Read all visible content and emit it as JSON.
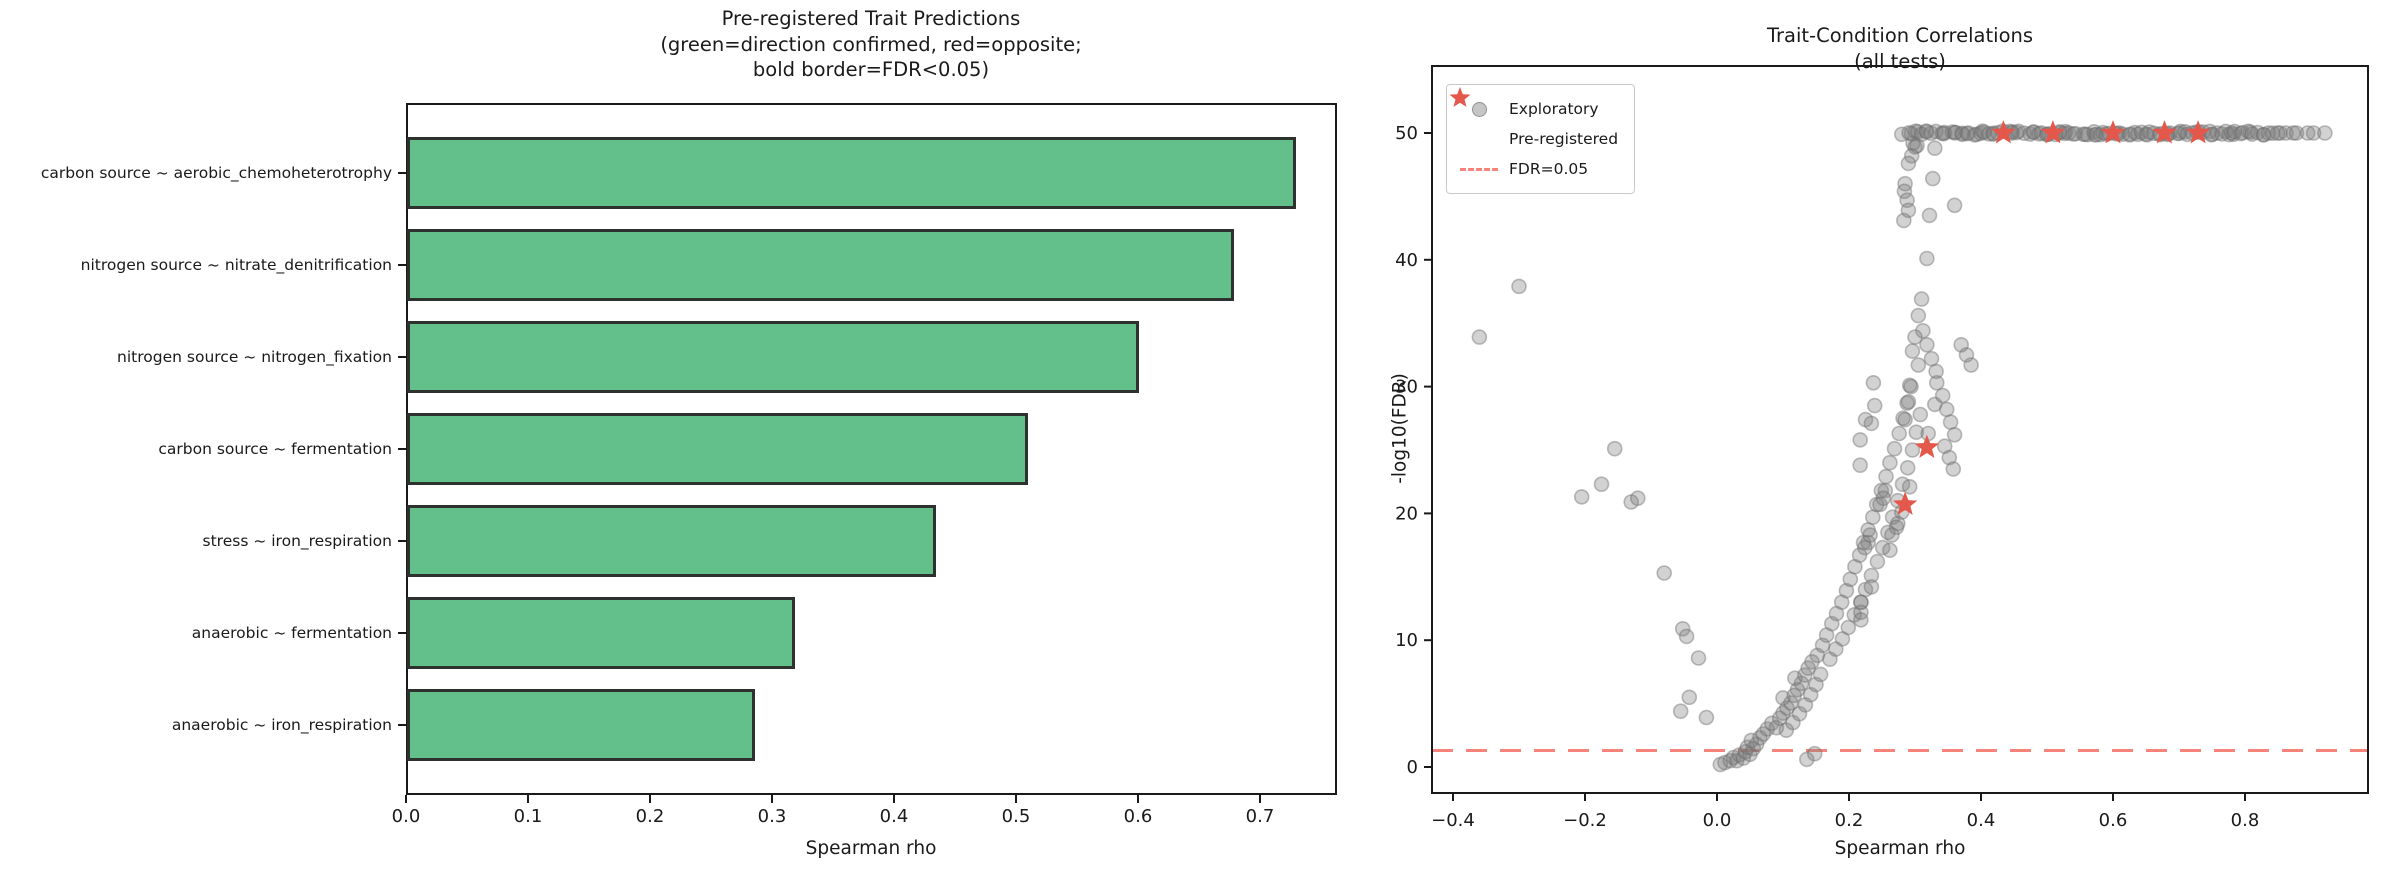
{
  "figure": {
    "background": "#ffffff",
    "text_color": "#1a1a1a"
  },
  "chart_data": [
    {
      "type": "bar",
      "orientation": "horizontal",
      "title_lines": [
        "Pre-registered Trait Predictions",
        "(green=direction confirmed, red=opposite;",
        "bold border=FDR<0.05)"
      ],
      "xlabel": "Spearman rho",
      "categories": [
        "carbon source ~ aerobic_chemoheterotrophy",
        "nitrogen source ~ nitrate_denitrification",
        "nitrogen source ~ nitrogen_fixation",
        "carbon source ~ fermentation",
        "stress ~ iron_respiration",
        "anaerobic ~ fermentation",
        "anaerobic ~ iron_respiration"
      ],
      "values": [
        0.729,
        0.678,
        0.6,
        0.509,
        0.434,
        0.318,
        0.285
      ],
      "xtick_labels": [
        "0.0",
        "0.1",
        "0.2",
        "0.3",
        "0.4",
        "0.5",
        "0.6",
        "0.7"
      ],
      "xtick_values": [
        0,
        0.1,
        0.2,
        0.3,
        0.4,
        0.5,
        0.6,
        0.7
      ],
      "xlim": [
        0,
        0.766
      ],
      "bar_color": "#63c08a",
      "bar_edge_color": "#2d322e",
      "note": "all 7 bars green with bold dark borders (direction confirmed, FDR<0.05)"
    },
    {
      "type": "scatter",
      "title_lines": [
        "Trait-Condition Correlations",
        "(all tests)"
      ],
      "xlabel": "Spearman rho",
      "ylabel": "-log10(FDR)",
      "xtick_labels": [
        "−0.4",
        "−0.2",
        "0.0",
        "0.2",
        "0.4",
        "0.6",
        "0.8"
      ],
      "xtick_values": [
        -0.4,
        -0.2,
        0.0,
        0.2,
        0.4,
        0.6,
        0.8
      ],
      "ytick_labels": [
        "0",
        "10",
        "20",
        "30",
        "40",
        "50"
      ],
      "ytick_values": [
        0,
        10,
        20,
        30,
        40,
        50
      ],
      "xlim": [
        -0.432,
        0.986
      ],
      "ylim": [
        -2.1,
        55.3
      ],
      "fdr_line_y": 1.3,
      "colors": {
        "exploratory_fill": "#7d7d7d",
        "exploratory_edge": "#6e6e6e",
        "star_color": "#e4584b",
        "fdr_line_color": "#f8837a"
      },
      "legend": {
        "items": [
          {
            "marker": "circle",
            "label": "Exploratory"
          },
          {
            "marker": "star",
            "label": "Pre-registered"
          },
          {
            "marker": "dashed-line",
            "label": "FDR=0.05"
          }
        ]
      },
      "series": {
        "band_at_50": {
          "y": 50,
          "x_min": 0.285,
          "x_max": 0.845,
          "n": 110,
          "note": "dense overlapping exploratory points capped at -log10(FDR)=50"
        },
        "band_tail": [
          [
            0.853,
            50
          ],
          [
            0.862,
            50
          ],
          [
            0.873,
            50
          ],
          [
            0.878,
            50
          ],
          [
            0.895,
            50
          ],
          [
            0.904,
            50
          ],
          [
            0.921,
            50
          ]
        ],
        "preregistered_stars": [
          [
            0.434,
            50
          ],
          [
            0.509,
            50
          ],
          [
            0.6,
            50
          ],
          [
            0.678,
            50
          ],
          [
            0.729,
            50
          ],
          [
            0.318,
            25.2
          ],
          [
            0.285,
            20.7
          ]
        ],
        "exploratory_points": [
          [
            -0.3,
            37.9
          ],
          [
            -0.36,
            33.9
          ],
          [
            -0.155,
            25.1
          ],
          [
            -0.175,
            22.3
          ],
          [
            -0.205,
            21.3
          ],
          [
            -0.13,
            20.9
          ],
          [
            -0.12,
            21.2
          ],
          [
            -0.08,
            15.3
          ],
          [
            -0.052,
            10.9
          ],
          [
            -0.046,
            10.3
          ],
          [
            -0.028,
            8.6
          ],
          [
            -0.042,
            5.5
          ],
          [
            -0.016,
            3.9
          ],
          [
            -0.055,
            4.4
          ],
          [
            0.005,
            0.2
          ],
          [
            0.012,
            0.35
          ],
          [
            0.02,
            0.5
          ],
          [
            0.025,
            0.75
          ],
          [
            0.03,
            0.5
          ],
          [
            0.034,
            0.95
          ],
          [
            0.04,
            0.7
          ],
          [
            0.043,
            1.2
          ],
          [
            0.05,
            1.0
          ],
          [
            0.046,
            1.55
          ],
          [
            0.055,
            1.45
          ],
          [
            0.06,
            1.8
          ],
          [
            0.052,
            2.1
          ],
          [
            0.065,
            2.3
          ],
          [
            0.136,
            0.6
          ],
          [
            0.148,
            1.05
          ],
          [
            0.07,
            2.6
          ],
          [
            0.076,
            3.0
          ],
          [
            0.083,
            3.45
          ],
          [
            0.09,
            3.1
          ],
          [
            0.095,
            3.85
          ],
          [
            0.1,
            4.25
          ],
          [
            0.106,
            4.65
          ],
          [
            0.112,
            5.05
          ],
          [
            0.1,
            5.45
          ],
          [
            0.117,
            5.65
          ],
          [
            0.122,
            6.1
          ],
          [
            0.128,
            6.6
          ],
          [
            0.118,
            7.0
          ],
          [
            0.133,
            7.25
          ],
          [
            0.138,
            7.8
          ],
          [
            0.144,
            8.3
          ],
          [
            0.105,
            2.9
          ],
          [
            0.115,
            3.5
          ],
          [
            0.125,
            4.2
          ],
          [
            0.134,
            4.9
          ],
          [
            0.142,
            5.7
          ],
          [
            0.15,
            6.5
          ],
          [
            0.157,
            7.3
          ],
          [
            0.152,
            8.8
          ],
          [
            0.16,
            9.6
          ],
          [
            0.166,
            10.4
          ],
          [
            0.174,
            11.3
          ],
          [
            0.181,
            12.1
          ],
          [
            0.189,
            13.0
          ],
          [
            0.196,
            13.9
          ],
          [
            0.202,
            14.8
          ],
          [
            0.209,
            15.8
          ],
          [
            0.216,
            16.7
          ],
          [
            0.222,
            17.7
          ],
          [
            0.229,
            18.7
          ],
          [
            0.236,
            19.7
          ],
          [
            0.242,
            20.7
          ],
          [
            0.249,
            21.8
          ],
          [
            0.256,
            22.9
          ],
          [
            0.262,
            24.0
          ],
          [
            0.269,
            25.1
          ],
          [
            0.276,
            26.3
          ],
          [
            0.282,
            27.5
          ],
          [
            0.288,
            28.7
          ],
          [
            0.294,
            30.0
          ],
          [
            0.171,
            8.5
          ],
          [
            0.18,
            9.3
          ],
          [
            0.19,
            10.1
          ],
          [
            0.199,
            11.0
          ],
          [
            0.208,
            12.0
          ],
          [
            0.218,
            13.0
          ],
          [
            0.225,
            14.0
          ],
          [
            0.234,
            15.1
          ],
          [
            0.243,
            16.2
          ],
          [
            0.251,
            17.3
          ],
          [
            0.259,
            18.5
          ],
          [
            0.266,
            19.7
          ],
          [
            0.274,
            21.0
          ],
          [
            0.281,
            22.3
          ],
          [
            0.289,
            23.6
          ],
          [
            0.296,
            25.0
          ],
          [
            0.302,
            26.4
          ],
          [
            0.308,
            27.8
          ],
          [
            0.237,
            30.3
          ],
          [
            0.292,
            30.1
          ],
          [
            0.333,
            30.3
          ],
          [
            0.29,
            28.8
          ],
          [
            0.33,
            28.6
          ],
          [
            0.239,
            28.5
          ],
          [
            0.225,
            27.4
          ],
          [
            0.234,
            27.1
          ],
          [
            0.285,
            27.4
          ],
          [
            0.32,
            26.3
          ],
          [
            0.217,
            25.8
          ],
          [
            0.217,
            23.8
          ],
          [
            0.255,
            21.8
          ],
          [
            0.252,
            21.2
          ],
          [
            0.247,
            20.7
          ],
          [
            0.292,
            22.1
          ],
          [
            0.28,
            20.1
          ],
          [
            0.274,
            19.2
          ],
          [
            0.272,
            18.9
          ],
          [
            0.265,
            18.3
          ],
          [
            0.262,
            17.1
          ],
          [
            0.232,
            18.3
          ],
          [
            0.229,
            17.7
          ],
          [
            0.224,
            17.3
          ],
          [
            0.234,
            14.2
          ],
          [
            0.218,
            13.0
          ],
          [
            0.218,
            12.2
          ],
          [
            0.218,
            11.6
          ],
          [
            0.3,
            48.9
          ],
          [
            0.295,
            48.2
          ],
          [
            0.29,
            47.6
          ],
          [
            0.285,
            46.0
          ],
          [
            0.284,
            45.4
          ],
          [
            0.288,
            44.7
          ],
          [
            0.29,
            43.9
          ],
          [
            0.283,
            43.1
          ],
          [
            0.33,
            48.8
          ],
          [
            0.327,
            46.4
          ],
          [
            0.322,
            43.5
          ],
          [
            0.318,
            40.1
          ],
          [
            0.36,
            44.3
          ],
          [
            0.31,
            36.9
          ],
          [
            0.305,
            35.6
          ],
          [
            0.312,
            34.4
          ],
          [
            0.318,
            33.3
          ],
          [
            0.325,
            32.2
          ],
          [
            0.332,
            31.2
          ],
          [
            0.3,
            33.9
          ],
          [
            0.296,
            32.8
          ],
          [
            0.305,
            31.7
          ],
          [
            0.37,
            33.3
          ],
          [
            0.378,
            32.5
          ],
          [
            0.385,
            31.7
          ],
          [
            0.342,
            29.3
          ],
          [
            0.348,
            28.2
          ],
          [
            0.354,
            27.2
          ],
          [
            0.36,
            26.2
          ],
          [
            0.345,
            25.3
          ],
          [
            0.352,
            24.4
          ],
          [
            0.358,
            23.5
          ],
          [
            0.297,
            49.2
          ],
          [
            0.303,
            49.0
          ]
        ]
      }
    }
  ]
}
